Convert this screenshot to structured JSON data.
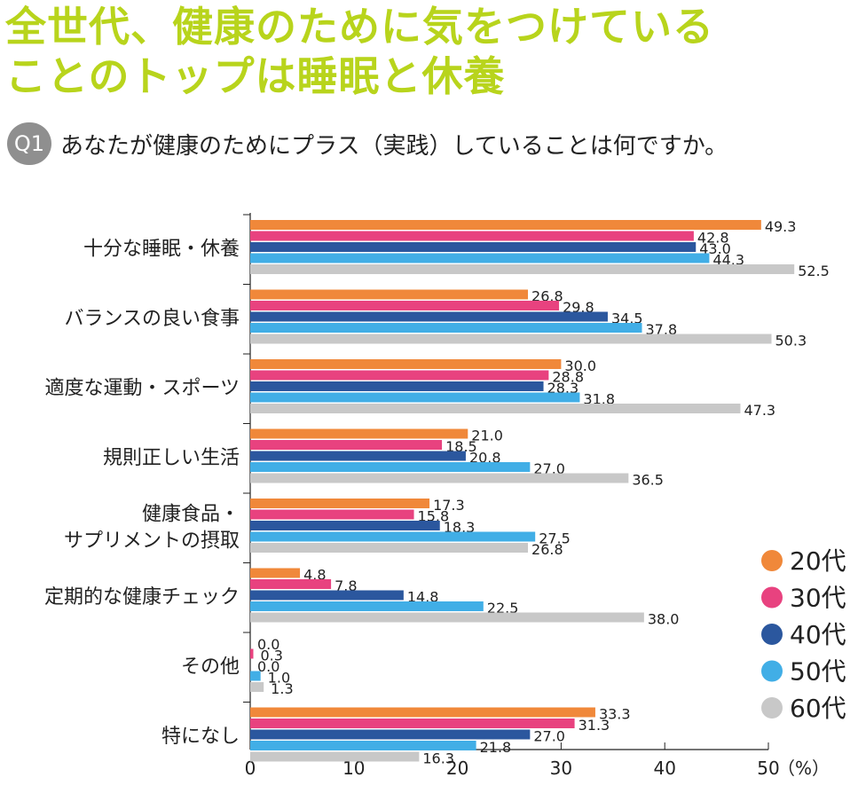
{
  "title": {
    "line1": "全世代、健康のために気をつけている",
    "line2": "ことのトップは睡眠と休養"
  },
  "question": {
    "badge": "Q1",
    "text": "あなたが健康のためにプラス（実践）していることは何ですか。"
  },
  "chart_data": {
    "type": "bar",
    "orientation": "horizontal",
    "categories": [
      [
        "十分な睡眠・休養"
      ],
      [
        "バランスの良い食事"
      ],
      [
        "適度な運動・スポーツ"
      ],
      [
        "規則正しい生活"
      ],
      [
        "健康食品・",
        "サプリメントの摂取"
      ],
      [
        "定期的な健康チェック"
      ],
      [
        "その他"
      ],
      [
        "特になし"
      ]
    ],
    "series": [
      {
        "name": "20代",
        "color": "#f0883a",
        "values": [
          49.3,
          26.8,
          30.0,
          21.0,
          17.3,
          4.8,
          0.0,
          33.3
        ]
      },
      {
        "name": "30代",
        "color": "#e8427f",
        "values": [
          42.8,
          29.8,
          28.8,
          18.5,
          15.8,
          7.8,
          0.3,
          31.3
        ]
      },
      {
        "name": "40代",
        "color": "#2b579e",
        "values": [
          43.0,
          34.5,
          28.3,
          20.8,
          18.3,
          14.8,
          0.0,
          27.0
        ]
      },
      {
        "name": "50代",
        "color": "#41aee6",
        "values": [
          44.3,
          37.8,
          31.8,
          27.0,
          27.5,
          22.5,
          1.0,
          21.8
        ]
      },
      {
        "name": "60代",
        "color": "#c8c8c8",
        "values": [
          52.5,
          50.3,
          47.3,
          36.5,
          26.8,
          38.0,
          1.3,
          16.3
        ]
      }
    ],
    "value_labels": [
      [
        "49.3",
        "42.8",
        "43.0",
        "44.3",
        "52.5"
      ],
      [
        "26.8",
        "29.8",
        "34.5",
        "37.8",
        "50.3"
      ],
      [
        "30.0",
        "28.8",
        "28.3",
        "31.8",
        "47.3"
      ],
      [
        "21.0",
        "18.5",
        "20.8",
        "27.0",
        "36.5"
      ],
      [
        "17.3",
        "15.8",
        "18.3",
        "27.5",
        "26.8"
      ],
      [
        "4.8",
        "7.8",
        "14.8",
        "22.5",
        "38.0"
      ],
      [
        "0.0",
        "0.3",
        "0.0",
        "1.0",
        "1.3"
      ],
      [
        "33.3",
        "31.3",
        "27.0",
        "21.8",
        "16.3"
      ]
    ],
    "x_ticks": [
      "0",
      "10",
      "20",
      "30",
      "40",
      "50"
    ],
    "x_unit": "（%）",
    "xlim": [
      0,
      50
    ],
    "legend_position": "right"
  }
}
